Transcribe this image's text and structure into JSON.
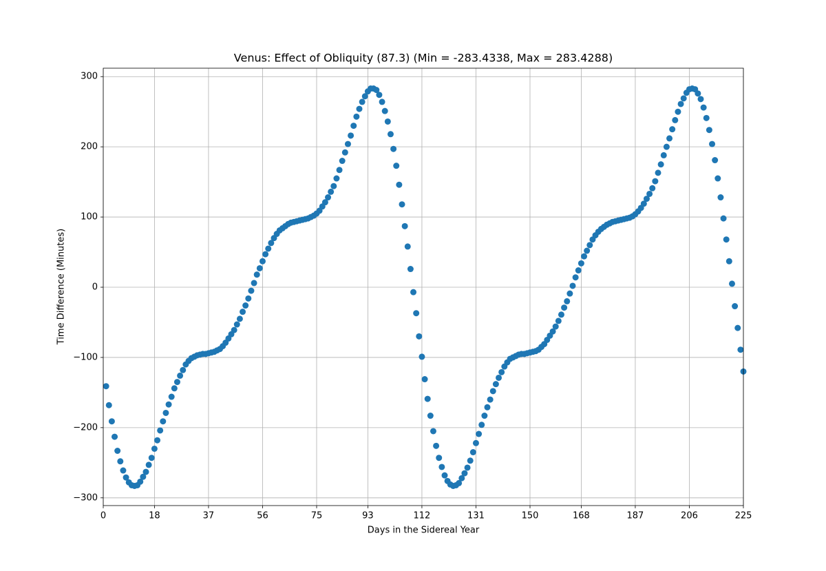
{
  "chart_data": {
    "type": "scatter",
    "title": "Venus: Effect of Obliquity (87.3) (Min = -283.4338, Max = 283.4288)",
    "x_label": "Days in the Sidereal Year",
    "y_label": "Time Difference (Minutes)",
    "color": "#1f77b4",
    "grid": true,
    "xlim": [
      0,
      225
    ],
    "ylim": [
      -311,
      312
    ],
    "xticks": [
      0,
      18,
      37,
      56,
      75,
      93,
      112,
      131,
      150,
      168,
      187,
      206,
      225
    ],
    "yticks": [
      {
        "value": -300,
        "label": "−300"
      },
      {
        "value": -200,
        "label": "−200"
      },
      {
        "value": -100,
        "label": "−100"
      },
      0,
      100,
      200,
      300
    ],
    "x": [
      1,
      2,
      3,
      4,
      5,
      6,
      7,
      8,
      9,
      10,
      11,
      12,
      13,
      14,
      15,
      16,
      17,
      18,
      19,
      20,
      21,
      22,
      23,
      24,
      25,
      26,
      27,
      28,
      29,
      30,
      31,
      32,
      33,
      34,
      35,
      36,
      37,
      38,
      39,
      40,
      41,
      42,
      43,
      44,
      45,
      46,
      47,
      48,
      49,
      50,
      51,
      52,
      53,
      54,
      55,
      56,
      57,
      58,
      59,
      60,
      61,
      62,
      63,
      64,
      65,
      66,
      67,
      68,
      69,
      70,
      71,
      72,
      73,
      74,
      75,
      76,
      77,
      78,
      79,
      80,
      81,
      82,
      83,
      84,
      85,
      86,
      87,
      88,
      89,
      90,
      91,
      92,
      93,
      94,
      95,
      96,
      97,
      98,
      99,
      100,
      101,
      102,
      103,
      104,
      105,
      106,
      107,
      108,
      109,
      110,
      111,
      112,
      113,
      114,
      115,
      116,
      117,
      118,
      119,
      120,
      121,
      122,
      123,
      124,
      125,
      126,
      127,
      128,
      129,
      130,
      131,
      132,
      133,
      134,
      135,
      136,
      137,
      138,
      139,
      140,
      141,
      142,
      143,
      144,
      145,
      146,
      147,
      148,
      149,
      150,
      151,
      152,
      153,
      154,
      155,
      156,
      157,
      158,
      159,
      160,
      161,
      162,
      163,
      164,
      165,
      166,
      167,
      168,
      169,
      170,
      171,
      172,
      173,
      174,
      175,
      176,
      177,
      178,
      179,
      180,
      181,
      182,
      183,
      184,
      185,
      186,
      187,
      188,
      189,
      190,
      191,
      192,
      193,
      194,
      195,
      196,
      197,
      198,
      199,
      200,
      201,
      202,
      203,
      204,
      205,
      206,
      207,
      208,
      209,
      210,
      211,
      212,
      213,
      214,
      215,
      216,
      217,
      218,
      219,
      220,
      221,
      222,
      223,
      224,
      225
    ],
    "values": [
      -141,
      -168,
      -191,
      -213,
      -233,
      -248,
      -261,
      -271,
      -278,
      -282,
      -283,
      -282,
      -277,
      -270,
      -263,
      -253,
      -243,
      -230,
      -218,
      -204,
      -191,
      -179,
      -167,
      -156,
      -144,
      -135,
      -126,
      -118,
      -110,
      -105,
      -101,
      -99,
      -97,
      -96,
      -95,
      -95,
      -94,
      -93,
      -92,
      -90,
      -88,
      -84,
      -79,
      -73,
      -67,
      -61,
      -53,
      -45,
      -35,
      -26,
      -16,
      -5,
      6,
      18,
      27,
      37,
      47,
      55,
      63,
      70,
      76,
      81,
      84,
      87,
      90,
      92,
      93,
      94,
      95,
      96,
      97,
      98,
      100,
      102,
      105,
      109,
      115,
      121,
      128,
      136,
      144,
      155,
      167,
      180,
      192,
      204,
      216,
      230,
      243,
      254,
      264,
      272,
      279,
      283,
      283,
      281,
      274,
      264,
      251,
      236,
      218,
      197,
      173,
      146,
      118,
      87,
      58,
      26,
      -7,
      -37,
      -70,
      -99,
      -131,
      -159,
      -183,
      -205,
      -226,
      -243,
      -256,
      -268,
      -276,
      -281,
      -283,
      -282,
      -279,
      -272,
      -265,
      -257,
      -247,
      -235,
      -222,
      -209,
      -196,
      -183,
      -171,
      -160,
      -148,
      -138,
      -129,
      -121,
      -113,
      -107,
      -102,
      -100,
      -98,
      -96,
      -95,
      -95,
      -94,
      -93,
      -92,
      -91,
      -89,
      -85,
      -81,
      -75,
      -69,
      -63,
      -56,
      -48,
      -39,
      -29,
      -20,
      -9,
      2,
      14,
      24,
      34,
      44,
      52,
      60,
      68,
      74,
      79,
      83,
      86,
      89,
      91,
      93,
      94,
      95,
      96,
      97,
      98,
      99,
      101,
      104,
      108,
      113,
      119,
      126,
      133,
      141,
      151,
      163,
      175,
      188,
      200,
      212,
      225,
      238,
      250,
      261,
      269,
      277,
      282,
      283,
      282,
      276,
      268,
      256,
      241,
      224,
      204,
      181,
      155,
      128,
      98,
      68,
      37,
      5,
      -27,
      -58,
      -89,
      -120
    ]
  }
}
